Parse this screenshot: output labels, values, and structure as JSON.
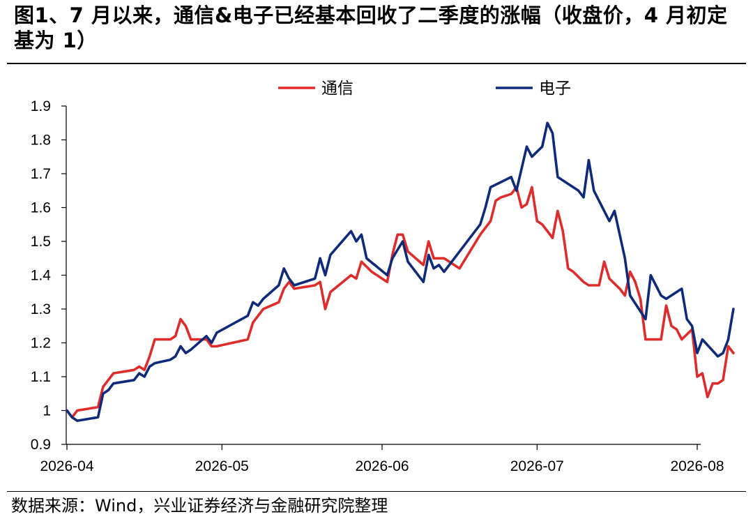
{
  "figure": {
    "title": "图1、7 月以来，通信&电子已经基本回收了二季度的涨幅（收盘价，4 月初定基为 1）",
    "source": "数据来源：Wind，兴业证券经济与金融研究院整理"
  },
  "chart_data": {
    "type": "line",
    "title": "",
    "xlabel": "",
    "ylabel": "",
    "x_ticks": [
      "2026-04",
      "2026-05",
      "2026-06",
      "2026-07",
      "2026-08"
    ],
    "x_range": [
      "2026-04-01",
      "2026-08-05"
    ],
    "y_ticks": [
      "0.9",
      "1",
      "1.1",
      "1.2",
      "1.3",
      "1.4",
      "1.5",
      "1.6",
      "1.7",
      "1.8",
      "1.9"
    ],
    "ylim": [
      0.9,
      1.9
    ],
    "grid": false,
    "legend_position": "top-center",
    "series": [
      {
        "name": "通信",
        "color": "#e02b2b",
        "points": [
          [
            "2026-04-01",
            1.0
          ],
          [
            "2026-04-02",
            0.98
          ],
          [
            "2026-04-03",
            1.0
          ],
          [
            "2026-04-07",
            1.01
          ],
          [
            "2026-04-08",
            1.07
          ],
          [
            "2026-04-09",
            1.09
          ],
          [
            "2026-04-10",
            1.11
          ],
          [
            "2026-04-14",
            1.12
          ],
          [
            "2026-04-15",
            1.13
          ],
          [
            "2026-04-16",
            1.12
          ],
          [
            "2026-04-17",
            1.16
          ],
          [
            "2026-04-18",
            1.21
          ],
          [
            "2026-04-21",
            1.21
          ],
          [
            "2026-04-22",
            1.22
          ],
          [
            "2026-04-23",
            1.27
          ],
          [
            "2026-04-24",
            1.25
          ],
          [
            "2026-04-25",
            1.21
          ],
          [
            "2026-04-28",
            1.21
          ],
          [
            "2026-04-29",
            1.19
          ],
          [
            "2026-04-30",
            1.19
          ],
          [
            "2026-05-06",
            1.21
          ],
          [
            "2026-05-07",
            1.26
          ],
          [
            "2026-05-09",
            1.3
          ],
          [
            "2026-05-12",
            1.32
          ],
          [
            "2026-05-13",
            1.36
          ],
          [
            "2026-05-14",
            1.38
          ],
          [
            "2026-05-15",
            1.36
          ],
          [
            "2026-05-19",
            1.37
          ],
          [
            "2026-05-20",
            1.38
          ],
          [
            "2026-05-21",
            1.3
          ],
          [
            "2026-05-22",
            1.35
          ],
          [
            "2026-05-26",
            1.4
          ],
          [
            "2026-05-27",
            1.39
          ],
          [
            "2026-05-28",
            1.44
          ],
          [
            "2026-05-30",
            1.41
          ],
          [
            "2026-06-02",
            1.38
          ],
          [
            "2026-06-03",
            1.46
          ],
          [
            "2026-06-04",
            1.52
          ],
          [
            "2026-06-05",
            1.52
          ],
          [
            "2026-06-06",
            1.47
          ],
          [
            "2026-06-09",
            1.43
          ],
          [
            "2026-06-10",
            1.5
          ],
          [
            "2026-06-11",
            1.45
          ],
          [
            "2026-06-13",
            1.45
          ],
          [
            "2026-06-16",
            1.42
          ],
          [
            "2026-06-20",
            1.52
          ],
          [
            "2026-06-22",
            1.56
          ],
          [
            "2026-06-23",
            1.62
          ],
          [
            "2026-06-24",
            1.63
          ],
          [
            "2026-06-26",
            1.64
          ],
          [
            "2026-06-27",
            1.66
          ],
          [
            "2026-06-28",
            1.6
          ],
          [
            "2026-06-29",
            1.61
          ],
          [
            "2026-06-30",
            1.66
          ],
          [
            "2026-07-01",
            1.56
          ],
          [
            "2026-07-02",
            1.55
          ],
          [
            "2026-07-03",
            1.53
          ],
          [
            "2026-07-04",
            1.51
          ],
          [
            "2026-07-05",
            1.59
          ],
          [
            "2026-07-06",
            1.53
          ],
          [
            "2026-07-07",
            1.42
          ],
          [
            "2026-07-08",
            1.41
          ],
          [
            "2026-07-10",
            1.38
          ],
          [
            "2026-07-11",
            1.37
          ],
          [
            "2026-07-13",
            1.37
          ],
          [
            "2026-07-14",
            1.44
          ],
          [
            "2026-07-15",
            1.39
          ],
          [
            "2026-07-17",
            1.36
          ],
          [
            "2026-07-18",
            1.34
          ],
          [
            "2026-07-19",
            1.41
          ],
          [
            "2026-07-20",
            1.38
          ],
          [
            "2026-07-21",
            1.33
          ],
          [
            "2026-07-22",
            1.21
          ],
          [
            "2026-07-23",
            1.21
          ],
          [
            "2026-07-25",
            1.21
          ],
          [
            "2026-07-26",
            1.31
          ],
          [
            "2026-07-27",
            1.25
          ],
          [
            "2026-07-28",
            1.24
          ],
          [
            "2026-07-29",
            1.21
          ],
          [
            "2026-07-31",
            1.24
          ],
          [
            "2026-08-01",
            1.1
          ],
          [
            "2026-08-02",
            1.11
          ],
          [
            "2026-08-03",
            1.04
          ],
          [
            "2026-08-04",
            1.08
          ],
          [
            "2026-08-05",
            1.08
          ],
          [
            "2026-08-06",
            1.09
          ],
          [
            "2026-08-07",
            1.19
          ],
          [
            "2026-08-08",
            1.17
          ]
        ]
      },
      {
        "name": "电子",
        "color": "#0f2a7a",
        "points": [
          [
            "2026-04-01",
            1.0
          ],
          [
            "2026-04-02",
            0.98
          ],
          [
            "2026-04-03",
            0.97
          ],
          [
            "2026-04-07",
            0.98
          ],
          [
            "2026-04-08",
            1.05
          ],
          [
            "2026-04-09",
            1.06
          ],
          [
            "2026-04-10",
            1.08
          ],
          [
            "2026-04-14",
            1.09
          ],
          [
            "2026-04-15",
            1.11
          ],
          [
            "2026-04-16",
            1.1
          ],
          [
            "2026-04-17",
            1.13
          ],
          [
            "2026-04-18",
            1.14
          ],
          [
            "2026-04-21",
            1.15
          ],
          [
            "2026-04-22",
            1.16
          ],
          [
            "2026-04-23",
            1.19
          ],
          [
            "2026-04-24",
            1.17
          ],
          [
            "2026-04-25",
            1.18
          ],
          [
            "2026-04-28",
            1.22
          ],
          [
            "2026-04-29",
            1.2
          ],
          [
            "2026-04-30",
            1.23
          ],
          [
            "2026-05-06",
            1.28
          ],
          [
            "2026-05-07",
            1.32
          ],
          [
            "2026-05-08",
            1.31
          ],
          [
            "2026-05-09",
            1.33
          ],
          [
            "2026-05-12",
            1.37
          ],
          [
            "2026-05-13",
            1.42
          ],
          [
            "2026-05-14",
            1.39
          ],
          [
            "2026-05-15",
            1.37
          ],
          [
            "2026-05-19",
            1.39
          ],
          [
            "2026-05-20",
            1.45
          ],
          [
            "2026-05-21",
            1.4
          ],
          [
            "2026-05-22",
            1.46
          ],
          [
            "2026-05-26",
            1.53
          ],
          [
            "2026-05-27",
            1.5
          ],
          [
            "2026-05-28",
            1.52
          ],
          [
            "2026-05-29",
            1.45
          ],
          [
            "2026-06-02",
            1.4
          ],
          [
            "2026-06-03",
            1.45
          ],
          [
            "2026-06-05",
            1.5
          ],
          [
            "2026-06-06",
            1.44
          ],
          [
            "2026-06-09",
            1.38
          ],
          [
            "2026-06-10",
            1.46
          ],
          [
            "2026-06-11",
            1.42
          ],
          [
            "2026-06-12",
            1.43
          ],
          [
            "2026-06-13",
            1.41
          ],
          [
            "2026-06-20",
            1.55
          ],
          [
            "2026-06-21",
            1.6
          ],
          [
            "2026-06-22",
            1.66
          ],
          [
            "2026-06-26",
            1.69
          ],
          [
            "2026-06-27",
            1.65
          ],
          [
            "2026-06-29",
            1.78
          ],
          [
            "2026-06-30",
            1.75
          ],
          [
            "2026-07-02",
            1.78
          ],
          [
            "2026-07-03",
            1.85
          ],
          [
            "2026-07-04",
            1.82
          ],
          [
            "2026-07-05",
            1.69
          ],
          [
            "2026-07-09",
            1.65
          ],
          [
            "2026-07-10",
            1.63
          ],
          [
            "2026-07-11",
            1.74
          ],
          [
            "2026-07-12",
            1.65
          ],
          [
            "2026-07-15",
            1.56
          ],
          [
            "2026-07-16",
            1.59
          ],
          [
            "2026-07-18",
            1.45
          ],
          [
            "2026-07-19",
            1.34
          ],
          [
            "2026-07-22",
            1.27
          ],
          [
            "2026-07-23",
            1.4
          ],
          [
            "2026-07-24",
            1.37
          ],
          [
            "2026-07-25",
            1.34
          ],
          [
            "2026-07-26",
            1.33
          ],
          [
            "2026-07-29",
            1.36
          ],
          [
            "2026-07-30",
            1.27
          ],
          [
            "2026-07-31",
            1.25
          ],
          [
            "2026-08-01",
            1.17
          ],
          [
            "2026-08-02",
            1.21
          ],
          [
            "2026-08-05",
            1.16
          ],
          [
            "2026-08-06",
            1.17
          ],
          [
            "2026-08-07",
            1.21
          ],
          [
            "2026-08-08",
            1.3
          ]
        ]
      }
    ]
  }
}
